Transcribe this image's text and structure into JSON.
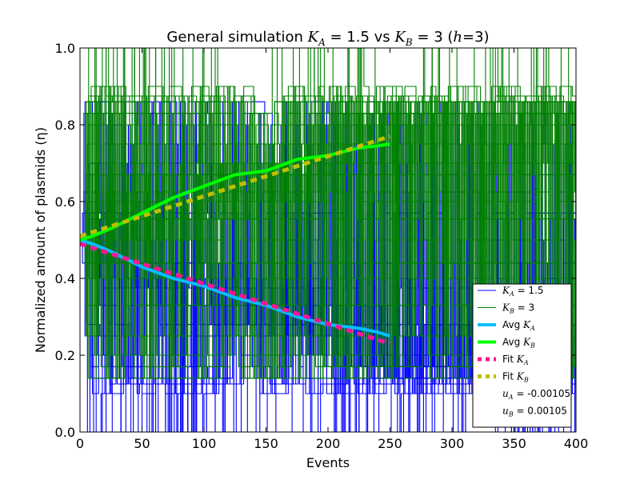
{
  "chart_data": {
    "type": "line",
    "title_parts": {
      "prefix": "General simulation ",
      "ka_symbol": "K",
      "ka_sub": "A",
      "ka_value": " = 1.5 vs ",
      "kb_symbol": "K",
      "kb_sub": "B",
      "kb_value": " = 3 (",
      "h_symbol": "h",
      "h_value": "=3)"
    },
    "xlabel": "Events",
    "ylabel": "Normalized amount of plasmids (η)",
    "xlim": [
      0,
      400
    ],
    "ylim": [
      0.0,
      1.0
    ],
    "xticks": [
      "0",
      "50",
      "100",
      "150",
      "200",
      "250",
      "300",
      "350",
      "400"
    ],
    "yticks": [
      "0.0",
      "0.2",
      "0.4",
      "0.6",
      "0.8",
      "1.0"
    ],
    "grid": false,
    "legend_position": "lower-right",
    "legend": [
      {
        "label": "K_A = 1.5",
        "color": "#0000ff",
        "style": "thin"
      },
      {
        "label": "K_B = 3",
        "color": "#008000",
        "style": "thin"
      },
      {
        "label": "Avg K_A",
        "color": "#00bfff",
        "style": "thick"
      },
      {
        "label": "Avg K_B",
        "color": "#00ff00",
        "style": "thick"
      },
      {
        "label": "Fit K_A",
        "color": "#ff1493",
        "style": "dashed"
      },
      {
        "label": "Fit K_B",
        "color": "#bfbf00",
        "style": "dashed"
      },
      {
        "label": "u_A = -0.00105",
        "color": null,
        "style": "none"
      },
      {
        "label": "u_B = 0.00105",
        "color": null,
        "style": "none"
      }
    ],
    "colors": {
      "ka_runs": "#0000ff",
      "kb_runs": "#008000",
      "avg_ka": "#00bfff",
      "avg_kb": "#00ff00",
      "fit_ka": "#ff1493",
      "fit_kb": "#bfbf00"
    },
    "series": [
      {
        "name": "Avg K_A",
        "x": [
          0,
          10,
          25,
          50,
          75,
          100,
          125,
          150,
          175,
          200,
          225,
          240,
          250
        ],
        "y": [
          0.5,
          0.49,
          0.47,
          0.43,
          0.4,
          0.38,
          0.35,
          0.33,
          0.3,
          0.28,
          0.27,
          0.26,
          0.25
        ]
      },
      {
        "name": "Avg K_B",
        "x": [
          0,
          10,
          25,
          50,
          75,
          100,
          125,
          150,
          175,
          200,
          225,
          240,
          250
        ],
        "y": [
          0.5,
          0.51,
          0.53,
          0.57,
          0.61,
          0.64,
          0.67,
          0.68,
          0.71,
          0.72,
          0.74,
          0.745,
          0.75
        ]
      },
      {
        "name": "Fit K_A",
        "x": [
          0,
          250
        ],
        "y": [
          0.49,
          0.23
        ]
      },
      {
        "name": "Fit K_B",
        "x": [
          0,
          250
        ],
        "y": [
          0.51,
          0.77
        ]
      }
    ],
    "fit_params": {
      "u_A": -0.00105,
      "u_B": 0.00105
    },
    "ensemble_runs": {
      "K_A": {
        "levels": [
          0.0,
          0.1,
          0.125,
          0.14,
          0.17,
          0.2,
          0.25,
          0.28,
          0.33,
          0.375,
          0.4,
          0.44,
          0.5,
          0.555,
          0.57,
          0.625,
          0.67,
          0.7,
          0.75,
          0.8,
          0.83,
          0.86
        ],
        "x_range": [
          0,
          400
        ],
        "series_count": 60
      },
      "K_B": {
        "levels": [
          0.14,
          0.17,
          0.2,
          0.25,
          0.33,
          0.4,
          0.44,
          0.5,
          0.555,
          0.6,
          0.625,
          0.67,
          0.7,
          0.75,
          0.8,
          0.83,
          0.86,
          0.875,
          0.9,
          1.0
        ],
        "x_range": [
          0,
          400
        ],
        "series_count": 60
      }
    }
  }
}
